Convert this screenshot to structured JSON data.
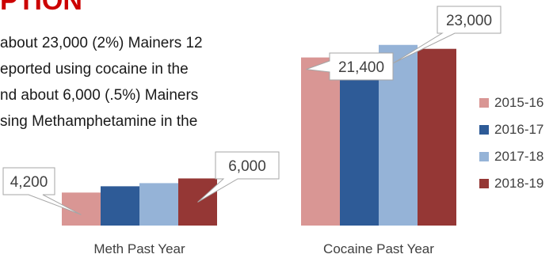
{
  "heading": "PTION",
  "paragraph_lines": [
    "about 23,000 (2%) Mainers 12",
    "eported using cocaine in the",
    "nd about 6,000 (.5%) Mainers",
    "sing Methamphetamine in the"
  ],
  "chart_data": {
    "type": "bar",
    "title": "",
    "xlabel": "",
    "ylabel": "",
    "categories": [
      "Meth Past Year",
      "Cocaine Past Year"
    ],
    "series": [
      {
        "name": "2015-16",
        "values": [
          4200,
          21400
        ]
      },
      {
        "name": "2016-17",
        "values": [
          5000,
          21800
        ]
      },
      {
        "name": "2017-18",
        "values": [
          5400,
          23000
        ]
      },
      {
        "name": "2018-19",
        "values": [
          6000,
          22500
        ]
      }
    ],
    "ylim": [
      0,
      26500
    ],
    "grid": false,
    "legend": "right",
    "callouts": [
      {
        "text": "4,200",
        "category": 0,
        "series": 0
      },
      {
        "text": "6,000",
        "category": 0,
        "series": 3
      },
      {
        "text": "21,400",
        "category": 1,
        "series": 0
      },
      {
        "text": "23,000",
        "category": 1,
        "series": 2
      }
    ],
    "colors": [
      "#d99694",
      "#2e5b97",
      "#95b3d7",
      "#953735"
    ]
  }
}
